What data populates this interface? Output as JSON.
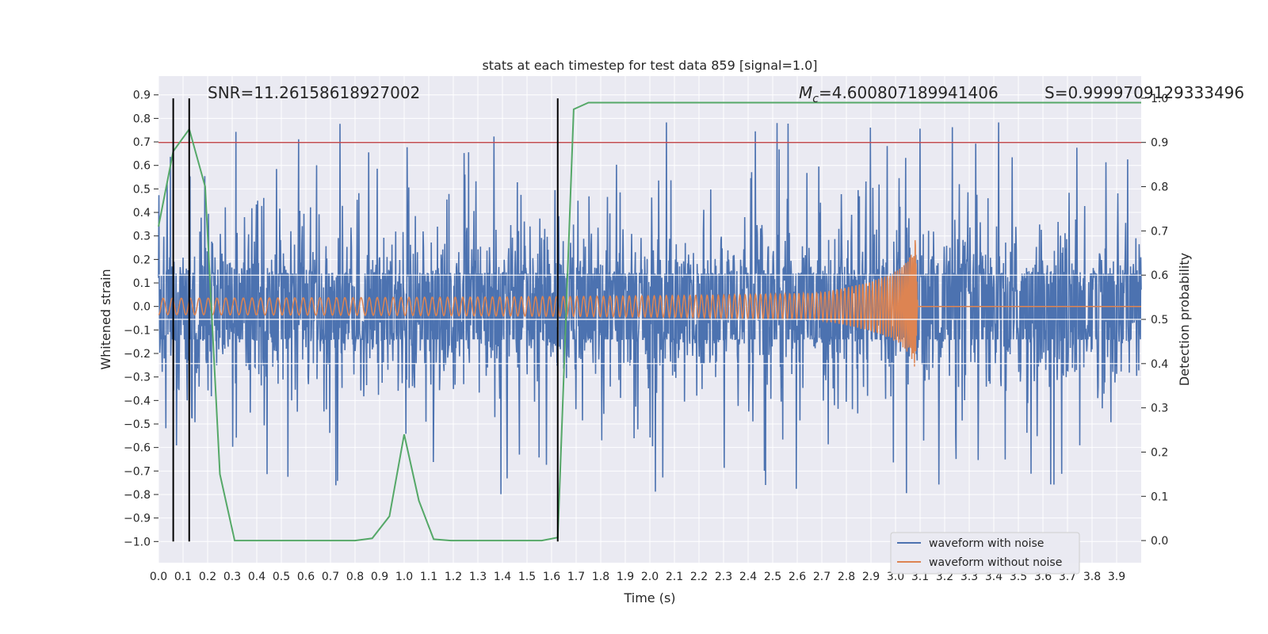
{
  "chart_data": {
    "type": "line",
    "title": "stats at each timestep for test data 859 [signal=1.0]",
    "xlabel": "Time (s)",
    "ylabel": "Whitened strain",
    "y2label": "Detection probability",
    "xlim": [
      0.0,
      4.0
    ],
    "ylim": [
      -1.09,
      0.98
    ],
    "y2lim": [
      -0.05,
      1.05
    ],
    "xticks": [
      "0.0",
      "0.1",
      "0.2",
      "0.3",
      "0.4",
      "0.5",
      "0.6",
      "0.7",
      "0.8",
      "0.9",
      "1.0",
      "1.1",
      "1.2",
      "1.3",
      "1.4",
      "1.5",
      "1.6",
      "1.7",
      "1.8",
      "1.9",
      "2.0",
      "2.1",
      "2.2",
      "2.3",
      "2.4",
      "2.5",
      "2.6",
      "2.7",
      "2.8",
      "2.9",
      "3.0",
      "3.1",
      "3.2",
      "3.3",
      "3.4",
      "3.5",
      "3.6",
      "3.7",
      "3.8",
      "3.9"
    ],
    "yticks": [
      "0.9",
      "0.8",
      "0.7",
      "0.6",
      "0.5",
      "0.4",
      "0.3",
      "0.2",
      "0.1",
      "0.0",
      "−0.1",
      "−0.2",
      "−0.3",
      "−0.4",
      "−0.5",
      "−0.6",
      "−0.7",
      "−0.8",
      "−0.9",
      "−1.0"
    ],
    "y2ticks": [
      "1.0",
      "0.9",
      "0.8",
      "0.7",
      "0.6",
      "0.5",
      "0.4",
      "0.3",
      "0.2",
      "0.1",
      "0.0"
    ],
    "grid": true,
    "legend_position": "lower-right",
    "annotations": {
      "snr": "SNR=11.26158618927002",
      "mc_symbol": "M",
      "mc_subscript": "c",
      "mc_value": "=4.600807189941406",
      "s": "S=0.9999709129333496"
    },
    "threshold_y2": 0.9,
    "vertical_markers_x": [
      0.06,
      0.125,
      1.625
    ],
    "series": [
      {
        "name": "waveform with noise",
        "color": "#4c72b0",
        "noise_band": [
          -0.35,
          0.35
        ]
      },
      {
        "name": "waveform without noise",
        "color": "#dd8452",
        "chirp_end_x": 3.08,
        "chirp_peak": [
          0.29,
          -0.25
        ]
      },
      {
        "name": "",
        "color": "#55a868",
        "axis": "y2",
        "x": [
          0.0,
          0.06,
          0.125,
          0.19,
          0.25,
          0.31,
          0.37,
          0.5,
          0.8,
          0.87,
          0.94,
          1.0,
          1.06,
          1.12,
          1.19,
          1.5,
          1.56,
          1.625,
          1.69,
          1.75,
          2.0,
          3.0,
          4.0
        ],
        "values": [
          0.71,
          0.88,
          0.93,
          0.8,
          0.15,
          0.0,
          0.0,
          0.0,
          0.0,
          0.005,
          0.055,
          0.24,
          0.09,
          0.003,
          0.0,
          0.0,
          0.0,
          0.007,
          0.975,
          0.99,
          0.99,
          0.99,
          0.99
        ]
      }
    ],
    "colors": {
      "axes_bg": "#eaeaf2",
      "grid": "#ffffff",
      "threshold": "#c44e52",
      "markers": "#000000"
    }
  }
}
